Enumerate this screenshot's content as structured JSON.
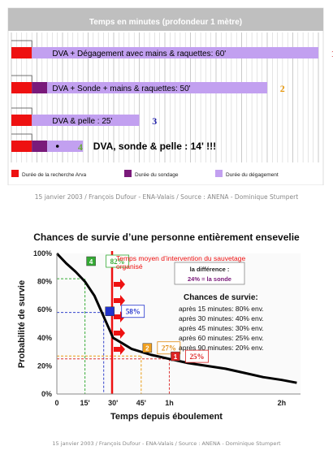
{
  "colors": {
    "search": "#ee1111",
    "probing": "#7a1a7a",
    "clearing": "#c2a0f0",
    "curve": "#000000",
    "arrow": "#ee1111",
    "grid": "#bdbdbd",
    "bar_header": "#bfbfbf"
  },
  "top": {
    "title": "Temps en minutes (profondeur 1 mètre)",
    "legend": {
      "search": "Durée de la recherche Arva",
      "probing": "Durée du sondage",
      "clearing": "Durée du dégagement"
    },
    "credit": "15 janvier 2003 / François Dufour - ENA-Valais / Source : ANENA - Dominique Stumpert"
  },
  "bottom": {
    "title": "Chances de survie d’une personne entièrement ensevelie",
    "ylabel": "Probabilité de survie",
    "xlabel": "Temps depuis éboulement",
    "intervention_note": "Temps moyen d’intervention du sauvetage organisé",
    "difference_label": "la différence :",
    "difference_value": "24% = la sonde",
    "chances_title": "Chances de survie:",
    "chances": [
      "après 15 minutes: 80% env.",
      "après 30 minutes: 40% env.",
      "après 45 minutes: 30% env.",
      "après 60 minutes: 25% env.",
      "après 90 minutes: 20% env."
    ],
    "credit": "15 janvier 2003 / François Dufour - ENA-Valais / Source : ANENA - Dominique Stumpert"
  },
  "chart_data": [
    {
      "type": "bar",
      "title": "Temps en minutes (profondeur 1 mètre)",
      "categories": [
        "1",
        "2",
        "3",
        "4"
      ],
      "bar_labels": [
        "DVA + Dégagement avec mains & raquettes: 60'",
        "DVA +  Sonde +  mains & raquettes: 50'",
        "DVA & pelle : 25'",
        "DVA, sonde & pelle : 14' !!!"
      ],
      "series": [
        {
          "name": "Durée de la recherche Arva",
          "values": [
            4,
            4,
            4,
            4
          ]
        },
        {
          "name": "Durée du sondage",
          "values": [
            0,
            3,
            0,
            3
          ]
        },
        {
          "name": "Durée du dégagement",
          "values": [
            56,
            43,
            21,
            7
          ]
        }
      ],
      "totals": [
        60,
        50,
        25,
        14
      ],
      "grid": true
    },
    {
      "type": "line",
      "title": "Chances de survie d’une personne entièrement ensevelie",
      "xlabel": "Temps depuis éboulement",
      "ylabel": "Probabilité de survie",
      "x_tick_labels": [
        "0",
        "15'",
        "30'",
        "45'",
        "1h",
        "2h"
      ],
      "x_tick_values": [
        0,
        15,
        30,
        45,
        60,
        120
      ],
      "y_tick_labels": [
        "0%",
        "20%",
        "40%",
        "60%",
        "80%",
        "100%"
      ],
      "y_tick_values": [
        0,
        20,
        40,
        60,
        80,
        100
      ],
      "xlim": [
        0,
        130
      ],
      "ylim": [
        0,
        100
      ],
      "grid": false,
      "series": [
        {
          "x": [
            0,
            5,
            10,
            15,
            20,
            25,
            30,
            35,
            40,
            45,
            50,
            60,
            70,
            80,
            90,
            100,
            110,
            120,
            128
          ],
          "y": [
            100,
            93,
            87,
            80,
            70,
            55,
            40,
            36,
            32,
            30,
            28,
            25,
            22,
            20,
            18,
            15,
            12,
            10,
            8
          ]
        }
      ],
      "markers": [
        {
          "label": "4",
          "value_label": "82%",
          "x": 15,
          "y": 82
        },
        {
          "label": "",
          "value_label": "58%",
          "x": 25,
          "y": 58
        },
        {
          "label": "2",
          "value_label": "27%",
          "x": 45,
          "y": 27
        },
        {
          "label": "1",
          "value_label": "25%",
          "x": 60,
          "y": 25
        }
      ]
    }
  ]
}
